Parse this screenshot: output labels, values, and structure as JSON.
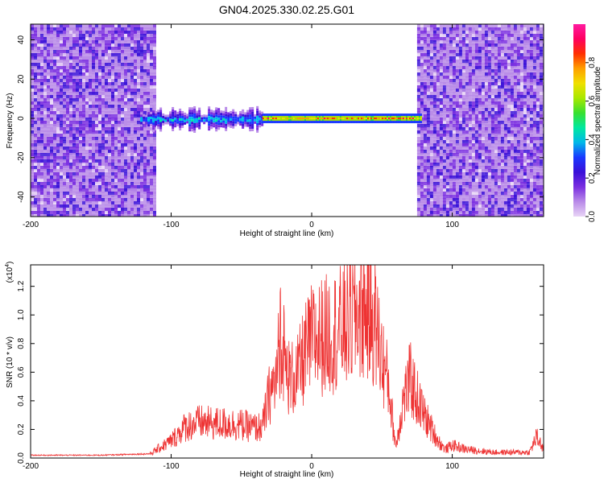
{
  "title": "GN04.2025.330.02.25.G01",
  "colorbar": {
    "label": "Normalized spectral amplitude",
    "ticks": [
      "0.0",
      "0.2",
      "0.4",
      "0.6",
      "0.8"
    ],
    "colors": [
      "#e8d4f6",
      "#b98be8",
      "#7a2ee0",
      "#3a10d8",
      "#1a38ff",
      "#00b8e8",
      "#00e8a0",
      "#38e030",
      "#a8e800",
      "#f0e000",
      "#ffa000",
      "#ff3000",
      "#ff0060",
      "#ff1aa0"
    ]
  },
  "chart_data": [
    {
      "type": "heatmap",
      "xlabel": "Height of straight line (km)",
      "ylabel": "Frequency (Hz)",
      "xlim": [
        -200,
        165
      ],
      "ylim": [
        -50,
        48
      ],
      "xticks": [
        "-200",
        "-100",
        "0",
        "100"
      ],
      "yticks": [
        "40",
        "20",
        "0",
        "-20",
        "-40"
      ],
      "colorscale": "Normalized spectral amplitude",
      "zlim": [
        0,
        1
      ],
      "regions": [
        {
          "x": [
            -200,
            -112
          ],
          "y": [
            -50,
            48
          ],
          "amplitude": 0.12,
          "pattern": "noise"
        },
        {
          "x": [
            75,
            165
          ],
          "y": [
            -50,
            48
          ],
          "amplitude": 0.12,
          "pattern": "noise"
        },
        {
          "x": [
            -122,
            -35
          ],
          "y": [
            -8,
            8
          ],
          "amplitude": 0.35,
          "pattern": "band"
        },
        {
          "x": [
            -35,
            78
          ],
          "y": [
            -2,
            2
          ],
          "amplitude": 0.9,
          "pattern": "line"
        }
      ]
    },
    {
      "type": "line",
      "xlabel": "Height of straight line (km)",
      "ylabel": "SNR (10 * v/v)",
      "yunit_label": "(x10",
      "yunit_exp": "4",
      "xlim": [
        -200,
        165
      ],
      "ylim": [
        0,
        1.35
      ],
      "xticks": [
        "-200",
        "-100",
        "0",
        "100"
      ],
      "yticks": [
        "0.0",
        "0.2",
        "0.4",
        "0.6",
        "0.8",
        "1.0",
        "1.2"
      ],
      "color": "#ee3333",
      "series": [
        {
          "x": [
            -200,
            -150,
            -115,
            -110,
            -100,
            -90,
            -80,
            -70,
            -60,
            -50,
            -40,
            -35,
            -30,
            -25,
            -22,
            -20,
            -18,
            -15,
            -10,
            -5,
            0,
            10,
            20,
            30,
            35,
            40,
            45,
            50,
            55,
            58,
            60,
            65,
            70,
            75,
            80,
            90,
            95,
            100,
            110,
            120,
            130,
            140,
            150,
            155,
            160,
            165
          ],
          "values": [
            0.02,
            0.02,
            0.03,
            0.06,
            0.12,
            0.22,
            0.25,
            0.24,
            0.24,
            0.23,
            0.21,
            0.22,
            0.45,
            0.55,
            0.9,
            0.75,
            0.6,
            0.55,
            0.58,
            0.72,
            0.82,
            0.86,
            0.9,
            0.98,
            1.05,
            1.03,
            0.95,
            0.7,
            0.5,
            0.22,
            0.08,
            0.4,
            0.55,
            0.42,
            0.3,
            0.12,
            0.06,
            0.09,
            0.06,
            0.05,
            0.04,
            0.04,
            0.04,
            0.04,
            0.15,
            0.06
          ]
        }
      ]
    }
  ]
}
